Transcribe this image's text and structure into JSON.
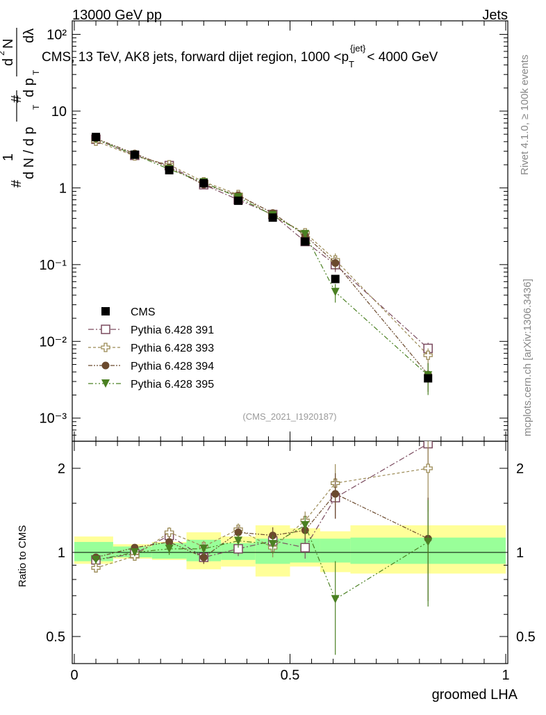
{
  "header": {
    "left": "13000 GeV pp",
    "right": "Jets",
    "title_main": "CMS, 13 TeV, AK8 jets, forward dijet region, 1000 <p",
    "title_sub": "T",
    "title_sup": "{jet}",
    "title_end": "< 4000 GeV"
  },
  "side": {
    "rivet": "Rivet 4.1.0, ≥ 100k events",
    "mcplots": "mcplots.cern.ch [arXiv:1306.3436]"
  },
  "watermark": "(CMS_2021_I1920187)",
  "ylabel_main": {
    "a": "#",
    "b": "1",
    "c": "d N / d p",
    "d": "#",
    "e": "d",
    "f": "N",
    "g": "d p",
    "h": "dλ",
    "sub": "T",
    "sup": "2"
  },
  "ylabel_ratio": "Ratio to CMS",
  "xlabel": "groomed LHA",
  "colors": {
    "cms": "#000000",
    "s391": "#7a4a5e",
    "s393": "#9b8a55",
    "s394": "#6b4a2e",
    "s395": "#4a8022",
    "band_inner": "#99ff99",
    "band_outer": "#ffff99"
  },
  "chart_data": [
    {
      "type": "scatter",
      "title": "CMS, 13 TeV, AK8 jets, forward dijet region, 1000 <pT{jet}< 4000 GeV",
      "xlabel": "groomed LHA",
      "ylabel": "1/N dN/dpT d²N/dpT dλ",
      "xlim": [
        0,
        1
      ],
      "ylim": [
        0.0005,
        150
      ],
      "yscale": "log",
      "ytick_labels": [
        "10²",
        "10",
        "1",
        "10⁻¹",
        "10⁻²",
        "10⁻³"
      ],
      "x": [
        0.05,
        0.14,
        0.22,
        0.3,
        0.38,
        0.46,
        0.535,
        0.605,
        0.82
      ],
      "series": [
        {
          "name": "CMS",
          "marker": "filled-square",
          "values": [
            4.6,
            2.7,
            1.7,
            1.15,
            0.68,
            0.41,
            0.2,
            0.065,
            0.0033
          ],
          "err": [
            0.2,
            0.1,
            0.08,
            0.05,
            0.04,
            0.03,
            0.015,
            0.007,
            0.0003
          ]
        },
        {
          "name": "Pythia 6.428 391",
          "marker": "open-square",
          "values": [
            4.3,
            2.65,
            1.95,
            1.1,
            0.7,
            0.45,
            0.2,
            0.1,
            0.0081
          ],
          "err": [
            0.15,
            0.1,
            0.1,
            0.05,
            0.05,
            0.04,
            0.02,
            0.02,
            0.0015
          ]
        },
        {
          "name": "Pythia 6.428 393",
          "marker": "open-cross",
          "values": [
            4.05,
            2.6,
            2.0,
            1.2,
            0.82,
            0.43,
            0.26,
            0.115,
            0.0066
          ],
          "err": [
            0.15,
            0.1,
            0.1,
            0.05,
            0.05,
            0.04,
            0.03,
            0.025,
            0.0015
          ]
        },
        {
          "name": "Pythia 6.428 394",
          "marker": "filled-circle",
          "values": [
            4.4,
            2.8,
            1.85,
            1.1,
            0.8,
            0.47,
            0.24,
            0.105,
            0.0037
          ],
          "err": [
            0.15,
            0.1,
            0.1,
            0.05,
            0.05,
            0.04,
            0.03,
            0.02,
            0.0015
          ]
        },
        {
          "name": "Pythia 6.428 395",
          "marker": "filled-triangle-down",
          "values": [
            4.3,
            2.7,
            1.75,
            1.18,
            0.75,
            0.44,
            0.25,
            0.044,
            0.0036
          ],
          "err": [
            0.15,
            0.1,
            0.1,
            0.05,
            0.05,
            0.04,
            0.03,
            0.012,
            0.0016
          ]
        }
      ]
    },
    {
      "type": "scatter",
      "ylabel": "Ratio to CMS",
      "xlabel": "groomed LHA",
      "xlim": [
        0,
        1
      ],
      "ylim": [
        0.4,
        2.5
      ],
      "yscale": "log",
      "yticks": [
        0.5,
        1,
        2
      ],
      "ytick_labels": [
        "0.5",
        "1",
        "2"
      ],
      "xticks": [
        0,
        0.5,
        1
      ],
      "xtick_labels": [
        "0",
        "0.5",
        "1"
      ],
      "x": [
        0.05,
        0.14,
        0.22,
        0.3,
        0.38,
        0.46,
        0.535,
        0.605,
        0.82
      ],
      "bands": {
        "edges": [
          0,
          0.09,
          0.18,
          0.26,
          0.34,
          0.42,
          0.5,
          0.57,
          0.64,
          1.0
        ],
        "inner": [
          [
            0.93,
            1.09
          ],
          [
            0.96,
            1.05
          ],
          [
            0.95,
            1.08
          ],
          [
            0.93,
            1.11
          ],
          [
            0.94,
            1.08
          ],
          [
            0.91,
            1.12
          ],
          [
            0.92,
            1.12
          ],
          [
            0.92,
            1.12
          ],
          [
            0.91,
            1.13
          ]
        ],
        "outer": [
          [
            0.91,
            1.14
          ],
          [
            0.95,
            1.07
          ],
          [
            0.94,
            1.09
          ],
          [
            0.87,
            1.18
          ],
          [
            0.89,
            1.14
          ],
          [
            0.82,
            1.25
          ],
          [
            0.89,
            1.22
          ],
          [
            0.85,
            1.19
          ],
          [
            0.84,
            1.25
          ]
        ]
      },
      "series": [
        {
          "name": "Pythia 6.428 391",
          "values": [
            0.94,
            0.99,
            1.15,
            0.96,
            1.03,
            1.1,
            1.04,
            1.57,
            2.45
          ],
          "err": [
            0.03,
            0.03,
            0.05,
            0.05,
            0.06,
            0.08,
            0.09,
            0.25,
            0.5
          ]
        },
        {
          "name": "Pythia 6.428 393",
          "values": [
            0.88,
            0.97,
            1.18,
            1.05,
            1.21,
            1.04,
            1.3,
            1.77,
            2.0
          ],
          "err": [
            0.03,
            0.03,
            0.05,
            0.05,
            0.06,
            0.08,
            0.1,
            0.3,
            0.6
          ]
        },
        {
          "name": "Pythia 6.428 394",
          "values": [
            0.96,
            1.04,
            1.09,
            0.96,
            1.18,
            1.15,
            1.2,
            1.62,
            1.12
          ],
          "err": [
            0.03,
            0.03,
            0.05,
            0.05,
            0.06,
            0.08,
            0.1,
            0.3,
            0.45
          ]
        },
        {
          "name": "Pythia 6.428 395",
          "values": [
            0.94,
            1.0,
            1.03,
            1.03,
            1.1,
            1.07,
            1.25,
            0.68,
            1.09
          ],
          "err": [
            0.03,
            0.03,
            0.05,
            0.05,
            0.06,
            0.08,
            0.1,
            0.25,
            0.45
          ]
        }
      ]
    }
  ]
}
